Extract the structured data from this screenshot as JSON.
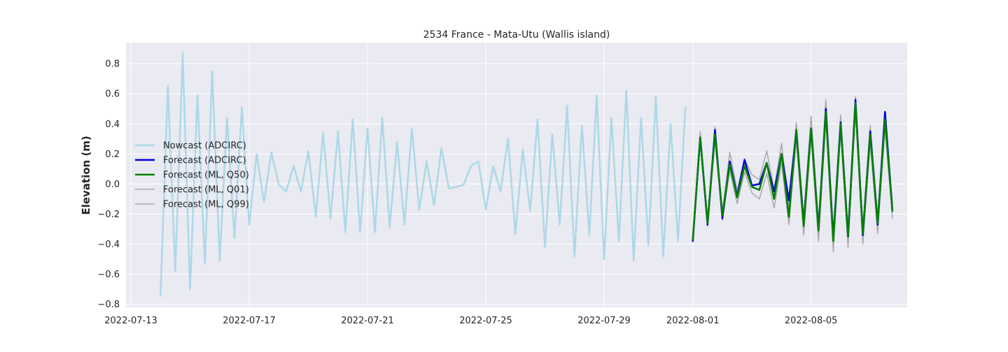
{
  "chart_data": {
    "type": "line",
    "title": "2534 France - Mata-Utu (Wallis island)",
    "xlabel": "",
    "ylabel": "Elevation (m)",
    "xlim": [
      "2022-07-12 20:00",
      "2022-08-08 06:00"
    ],
    "ylim": [
      -0.82,
      0.94
    ],
    "grid": true,
    "legend_position": "left-middle",
    "x_ticks": [
      "2022-07-13",
      "2022-07-17",
      "2022-07-21",
      "2022-07-25",
      "2022-07-29",
      "2022-08-01",
      "2022-08-05"
    ],
    "y_ticks": [
      -0.8,
      -0.6,
      -0.4,
      -0.2,
      0.0,
      0.2,
      0.4,
      0.6,
      0.8
    ],
    "y_tick_labels": [
      "−0.8",
      "−0.6",
      "−0.4",
      "−0.2",
      "0.0",
      "0.2",
      "0.4",
      "0.6",
      "0.8"
    ],
    "series": [
      {
        "name": "Nowcast (ADCIRC)",
        "color": "#add8e6",
        "width": 2.5,
        "x": [
          "2022-07-14 00:00",
          "2022-07-14 06:00",
          "2022-07-14 12:00",
          "2022-07-14 18:00",
          "2022-07-15 00:00",
          "2022-07-15 06:00",
          "2022-07-15 12:00",
          "2022-07-15 18:00",
          "2022-07-16 00:00",
          "2022-07-16 06:00",
          "2022-07-16 12:00",
          "2022-07-16 18:00",
          "2022-07-17 00:00",
          "2022-07-17 06:00",
          "2022-07-17 12:00",
          "2022-07-17 18:00",
          "2022-07-18 00:00",
          "2022-07-18 06:00",
          "2022-07-18 12:00",
          "2022-07-18 18:00",
          "2022-07-19 00:00",
          "2022-07-19 06:00",
          "2022-07-19 12:00",
          "2022-07-19 18:00",
          "2022-07-20 00:00",
          "2022-07-20 06:00",
          "2022-07-20 12:00",
          "2022-07-20 18:00",
          "2022-07-21 00:00",
          "2022-07-21 06:00",
          "2022-07-21 12:00",
          "2022-07-21 18:00",
          "2022-07-22 00:00",
          "2022-07-22 06:00",
          "2022-07-22 12:00",
          "2022-07-22 18:00",
          "2022-07-23 00:00",
          "2022-07-23 06:00",
          "2022-07-23 12:00",
          "2022-07-23 18:00",
          "2022-07-24 00:00",
          "2022-07-24 06:00",
          "2022-07-24 12:00",
          "2022-07-24 18:00",
          "2022-07-25 00:00",
          "2022-07-25 06:00",
          "2022-07-25 12:00",
          "2022-07-25 18:00",
          "2022-07-26 00:00",
          "2022-07-26 06:00",
          "2022-07-26 12:00",
          "2022-07-26 18:00",
          "2022-07-27 00:00",
          "2022-07-27 06:00",
          "2022-07-27 12:00",
          "2022-07-27 18:00",
          "2022-07-28 00:00",
          "2022-07-28 06:00",
          "2022-07-28 12:00",
          "2022-07-28 18:00",
          "2022-07-29 00:00",
          "2022-07-29 06:00",
          "2022-07-29 12:00",
          "2022-07-29 18:00",
          "2022-07-30 00:00",
          "2022-07-30 06:00",
          "2022-07-30 12:00",
          "2022-07-30 18:00",
          "2022-07-31 00:00",
          "2022-07-31 06:00",
          "2022-07-31 12:00",
          "2022-07-31 18:00"
        ],
        "y": [
          -0.74,
          0.65,
          -0.58,
          0.87,
          -0.7,
          0.59,
          -0.53,
          0.75,
          -0.51,
          0.44,
          -0.36,
          0.51,
          -0.27,
          0.2,
          -0.12,
          0.21,
          -0.005,
          -0.05,
          0.12,
          -0.05,
          0.22,
          -0.22,
          0.34,
          -0.23,
          0.35,
          -0.32,
          0.43,
          -0.32,
          0.37,
          -0.32,
          0.44,
          -0.29,
          0.28,
          -0.27,
          0.37,
          -0.17,
          0.15,
          -0.14,
          0.24,
          -0.03,
          -0.02,
          -0.005,
          0.12,
          0.15,
          -0.17,
          0.12,
          -0.05,
          0.3,
          -0.33,
          0.23,
          -0.18,
          0.43,
          -0.42,
          0.33,
          -0.27,
          0.52,
          -0.48,
          0.39,
          -0.34,
          0.59,
          -0.5,
          0.44,
          -0.38,
          0.62,
          -0.51,
          0.44,
          -0.41,
          0.58,
          -0.48,
          0.4,
          -0.38,
          0.51
        ]
      },
      {
        "name": "Forecast (ADCIRC)",
        "color": "#0000dd",
        "width": 2.5,
        "x": [
          "2022-08-01 00:00",
          "2022-08-01 06:00",
          "2022-08-01 12:00",
          "2022-08-01 18:00",
          "2022-08-02 00:00",
          "2022-08-02 06:00",
          "2022-08-02 12:00",
          "2022-08-02 18:00",
          "2022-08-03 00:00",
          "2022-08-03 06:00",
          "2022-08-03 12:00",
          "2022-08-03 18:00",
          "2022-08-04 00:00",
          "2022-08-04 06:00",
          "2022-08-04 12:00",
          "2022-08-04 18:00",
          "2022-08-05 00:00",
          "2022-08-05 06:00",
          "2022-08-05 12:00",
          "2022-08-05 18:00",
          "2022-08-06 00:00",
          "2022-08-06 06:00",
          "2022-08-06 12:00",
          "2022-08-06 18:00",
          "2022-08-07 00:00",
          "2022-08-07 06:00",
          "2022-08-07 12:00",
          "2022-08-07 18:00"
        ],
        "y": [
          -0.38,
          0.31,
          -0.27,
          0.36,
          -0.23,
          0.15,
          -0.08,
          0.16,
          -0.01,
          0.0,
          0.14,
          -0.05,
          0.2,
          -0.11,
          0.35,
          -0.26,
          0.37,
          -0.3,
          0.5,
          -0.36,
          0.41,
          -0.35,
          0.56,
          -0.34,
          0.35,
          -0.27,
          0.48,
          -0.18
        ]
      },
      {
        "name": "Forecast (ML, Q50)",
        "color": "#008000",
        "width": 2.5,
        "x": [
          "2022-08-01 00:00",
          "2022-08-01 06:00",
          "2022-08-01 12:00",
          "2022-08-01 18:00",
          "2022-08-02 00:00",
          "2022-08-02 06:00",
          "2022-08-02 12:00",
          "2022-08-02 18:00",
          "2022-08-03 00:00",
          "2022-08-03 06:00",
          "2022-08-03 12:00",
          "2022-08-03 18:00",
          "2022-08-04 00:00",
          "2022-08-04 06:00",
          "2022-08-04 12:00",
          "2022-08-04 18:00",
          "2022-08-05 00:00",
          "2022-08-05 06:00",
          "2022-08-05 12:00",
          "2022-08-05 18:00",
          "2022-08-06 00:00",
          "2022-08-06 06:00",
          "2022-08-06 12:00",
          "2022-08-06 18:00",
          "2022-08-07 00:00",
          "2022-08-07 06:00",
          "2022-08-07 12:00",
          "2022-08-07 18:00"
        ],
        "y": [
          -0.37,
          0.31,
          -0.26,
          0.33,
          -0.21,
          0.13,
          -0.09,
          0.12,
          -0.02,
          -0.04,
          0.14,
          -0.1,
          0.2,
          -0.22,
          0.36,
          -0.28,
          0.37,
          -0.31,
          0.48,
          -0.38,
          0.4,
          -0.35,
          0.54,
          -0.33,
          0.33,
          -0.26,
          0.43,
          -0.18
        ]
      },
      {
        "name": "Forecast (ML, Q01)",
        "color": "#a9a9a9",
        "width": 1.5,
        "x": [
          "2022-08-01 00:00",
          "2022-08-01 06:00",
          "2022-08-01 12:00",
          "2022-08-01 18:00",
          "2022-08-02 00:00",
          "2022-08-02 06:00",
          "2022-08-02 12:00",
          "2022-08-02 18:00",
          "2022-08-03 00:00",
          "2022-08-03 06:00",
          "2022-08-03 12:00",
          "2022-08-03 18:00",
          "2022-08-04 00:00",
          "2022-08-04 06:00",
          "2022-08-04 12:00",
          "2022-08-04 18:00",
          "2022-08-05 00:00",
          "2022-08-05 06:00",
          "2022-08-05 12:00",
          "2022-08-05 18:00",
          "2022-08-06 00:00",
          "2022-08-06 06:00",
          "2022-08-06 12:00",
          "2022-08-06 18:00",
          "2022-08-07 00:00",
          "2022-08-07 06:00",
          "2022-08-07 12:00",
          "2022-08-07 18:00"
        ],
        "y": [
          -0.38,
          0.27,
          -0.28,
          0.29,
          -0.24,
          0.09,
          -0.13,
          0.08,
          -0.06,
          -0.1,
          0.07,
          -0.16,
          0.14,
          -0.27,
          0.29,
          -0.34,
          0.31,
          -0.38,
          0.42,
          -0.45,
          0.34,
          -0.42,
          0.48,
          -0.4,
          0.27,
          -0.33,
          0.37,
          -0.23
        ]
      },
      {
        "name": "Forecast (ML, Q99)",
        "color": "#a9a9a9",
        "width": 1.5,
        "x": [
          "2022-08-01 00:00",
          "2022-08-01 06:00",
          "2022-08-01 12:00",
          "2022-08-01 18:00",
          "2022-08-02 00:00",
          "2022-08-02 06:00",
          "2022-08-02 12:00",
          "2022-08-02 18:00",
          "2022-08-03 00:00",
          "2022-08-03 06:00",
          "2022-08-03 12:00",
          "2022-08-03 18:00",
          "2022-08-04 00:00",
          "2022-08-04 06:00",
          "2022-08-04 12:00",
          "2022-08-04 18:00",
          "2022-08-05 00:00",
          "2022-08-05 06:00",
          "2022-08-05 12:00",
          "2022-08-05 18:00",
          "2022-08-06 00:00",
          "2022-08-06 06:00",
          "2022-08-06 12:00",
          "2022-08-06 18:00",
          "2022-08-07 00:00",
          "2022-08-07 06:00",
          "2022-08-07 12:00",
          "2022-08-07 18:00"
        ],
        "y": [
          -0.35,
          0.35,
          -0.23,
          0.38,
          -0.18,
          0.21,
          -0.04,
          0.17,
          0.06,
          0.03,
          0.22,
          -0.04,
          0.27,
          -0.16,
          0.41,
          -0.22,
          0.45,
          -0.25,
          0.56,
          -0.32,
          0.46,
          -0.29,
          0.58,
          -0.28,
          0.39,
          -0.21,
          0.47,
          -0.13
        ]
      }
    ]
  }
}
